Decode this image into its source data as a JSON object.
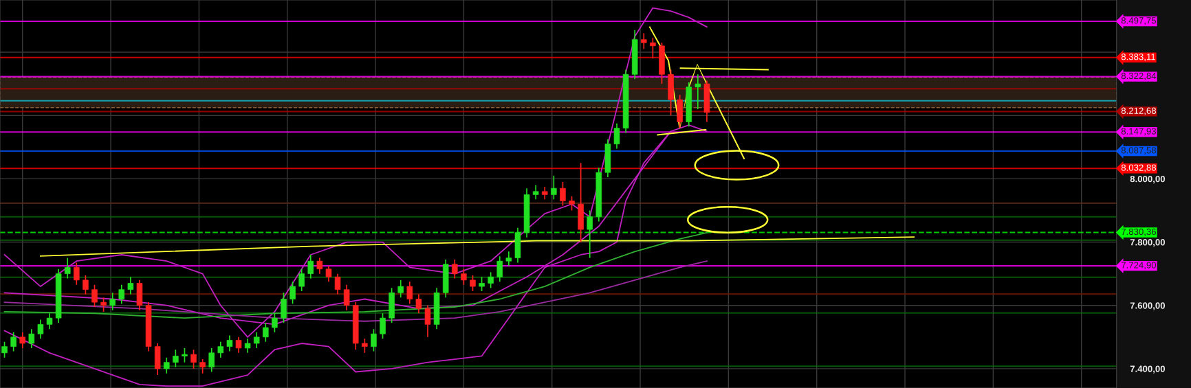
{
  "chart_data": {
    "type": "candlestick",
    "categories": [
      null,
      null,
      null,
      null,
      null,
      null,
      null,
      null,
      null,
      null,
      null,
      null,
      null,
      null,
      null,
      null,
      null,
      null,
      null,
      null,
      null,
      null,
      null,
      null,
      null,
      null,
      null,
      null,
      null,
      null,
      null,
      null,
      null,
      null,
      null,
      null,
      null,
      null,
      null,
      null,
      null,
      null,
      null,
      null,
      null,
      null,
      null,
      null,
      null,
      null,
      null,
      null,
      null,
      null,
      null,
      null,
      null,
      null,
      null,
      null,
      null,
      null,
      null,
      null,
      null,
      null,
      null,
      null,
      null,
      null,
      null,
      null,
      null,
      null,
      null,
      null,
      null,
      null,
      null,
      null,
      null,
      null,
      null,
      null,
      null,
      null,
      null,
      null,
      null,
      null,
      null,
      null,
      null,
      null,
      null,
      null,
      null,
      null,
      null,
      null,
      null,
      null,
      null,
      null,
      null,
      null,
      null,
      null,
      null,
      null,
      null,
      null,
      null,
      null,
      null,
      null,
      null,
      null,
      null,
      null,
      null,
      null,
      null,
      null
    ],
    "ohlc": [
      [
        7450,
        7485,
        7435,
        7470
      ],
      [
        7470,
        7515,
        7455,
        7500
      ],
      [
        7500,
        7515,
        7465,
        7480
      ],
      [
        7480,
        7525,
        7465,
        7510
      ],
      [
        7510,
        7555,
        7495,
        7540
      ],
      [
        7540,
        7575,
        7525,
        7560
      ],
      [
        7560,
        7715,
        7545,
        7700
      ],
      [
        7700,
        7750,
        7685,
        7720
      ],
      [
        7720,
        7735,
        7665,
        7680
      ],
      [
        7680,
        7695,
        7635,
        7650
      ],
      [
        7650,
        7665,
        7595,
        7610
      ],
      [
        7610,
        7625,
        7580,
        7600
      ],
      [
        7600,
        7640,
        7585,
        7620
      ],
      [
        7620,
        7665,
        7605,
        7650
      ],
      [
        7650,
        7690,
        7635,
        7670
      ],
      [
        7670,
        7680,
        7585,
        7600
      ],
      [
        7600,
        7610,
        7455,
        7470
      ],
      [
        7470,
        7480,
        7380,
        7400
      ],
      [
        7400,
        7435,
        7385,
        7420
      ],
      [
        7420,
        7460,
        7405,
        7440
      ],
      [
        7440,
        7465,
        7420,
        7445
      ],
      [
        7445,
        7460,
        7400,
        7420
      ],
      [
        7420,
        7430,
        7385,
        7405
      ],
      [
        7405,
        7465,
        7390,
        7450
      ],
      [
        7450,
        7485,
        7435,
        7470
      ],
      [
        7470,
        7505,
        7455,
        7490
      ],
      [
        7490,
        7500,
        7450,
        7465
      ],
      [
        7465,
        7495,
        7450,
        7480
      ],
      [
        7480,
        7515,
        7465,
        7500
      ],
      [
        7500,
        7545,
        7485,
        7530
      ],
      [
        7530,
        7575,
        7515,
        7560
      ],
      [
        7560,
        7640,
        7545,
        7620
      ],
      [
        7620,
        7675,
        7605,
        7660
      ],
      [
        7660,
        7715,
        7645,
        7700
      ],
      [
        7700,
        7760,
        7685,
        7740
      ],
      [
        7740,
        7750,
        7700,
        7715
      ],
      [
        7715,
        7725,
        7675,
        7690
      ],
      [
        7690,
        7700,
        7635,
        7650
      ],
      [
        7650,
        7665,
        7585,
        7600
      ],
      [
        7600,
        7610,
        7460,
        7480
      ],
      [
        7480,
        7495,
        7450,
        7470
      ],
      [
        7470,
        7525,
        7455,
        7510
      ],
      [
        7510,
        7575,
        7495,
        7560
      ],
      [
        7560,
        7655,
        7545,
        7640
      ],
      [
        7640,
        7680,
        7625,
        7660
      ],
      [
        7660,
        7675,
        7605,
        7620
      ],
      [
        7620,
        7635,
        7575,
        7590
      ],
      [
        7590,
        7600,
        7500,
        7540
      ],
      [
        7540,
        7655,
        7525,
        7640
      ],
      [
        7640,
        7745,
        7625,
        7730
      ],
      [
        7730,
        7745,
        7685,
        7700
      ],
      [
        7700,
        7715,
        7665,
        7680
      ],
      [
        7680,
        7695,
        7645,
        7660
      ],
      [
        7660,
        7690,
        7645,
        7670
      ],
      [
        7670,
        7705,
        7655,
        7690
      ],
      [
        7690,
        7755,
        7675,
        7740
      ],
      [
        7740,
        7770,
        7725,
        7750
      ],
      [
        7750,
        7845,
        7735,
        7830
      ],
      [
        7830,
        7970,
        7815,
        7950
      ],
      [
        7950,
        7980,
        7935,
        7960
      ],
      [
        7960,
        7975,
        7935,
        7950
      ],
      [
        7950,
        8010,
        7935,
        7970
      ],
      [
        7970,
        7990,
        7915,
        7930
      ],
      [
        7930,
        7945,
        7900,
        7920
      ],
      [
        7920,
        8050,
        7800,
        7840
      ],
      [
        7840,
        7900,
        7750,
        7880
      ],
      [
        7880,
        8035,
        7865,
        8020
      ],
      [
        8020,
        8125,
        8005,
        8110
      ],
      [
        8110,
        8175,
        8095,
        8160
      ],
      [
        8160,
        8345,
        8145,
        8330
      ],
      [
        8330,
        8470,
        8315,
        8440
      ],
      [
        8440,
        8460,
        8410,
        8430
      ],
      [
        8430,
        8445,
        8380,
        8420
      ],
      [
        8420,
        8430,
        8300,
        8330
      ],
      [
        8330,
        8345,
        8200,
        8250
      ],
      [
        8250,
        8265,
        8160,
        8180
      ],
      [
        8180,
        8305,
        8165,
        8290
      ],
      [
        8290,
        8330,
        8220,
        8300
      ],
      [
        8300,
        8310,
        8180,
        8210
      ],
      null,
      null,
      null,
      null,
      null,
      null,
      null,
      null,
      null,
      null,
      null,
      null,
      null,
      null,
      null,
      null,
      null,
      null,
      null,
      null,
      null,
      null,
      null,
      null,
      null,
      null,
      null,
      null,
      null,
      null,
      null,
      null,
      null,
      null,
      null,
      null,
      null,
      null,
      null,
      null,
      null,
      null,
      null,
      null,
      null
    ],
    "colors": [
      "#22e022",
      "#22e022",
      "#ff2020",
      "#22e022",
      "#22e022",
      "#22e022",
      "#22e022",
      "#22e022",
      "#ff2020",
      "#ff2020",
      "#ff2020",
      "#ff2020",
      "#22e022",
      "#22e022",
      "#22e022",
      "#ff2020",
      "#ff2020",
      "#ff2020",
      "#22e022",
      "#22e022",
      "#22e022",
      "#ff2020",
      "#ff2020",
      "#22e022",
      "#22e022",
      "#22e022",
      "#ff2020",
      "#22e022",
      "#22e022",
      "#22e022",
      "#22e022",
      "#22e022",
      "#22e022",
      "#22e022",
      "#22e022",
      "#ff2020",
      "#ff2020",
      "#ff2020",
      "#ff2020",
      "#ff2020",
      "#ff2020",
      "#22e022",
      "#22e022",
      "#22e022",
      "#22e022",
      "#ff2020",
      "#ff2020",
      "#ff2020",
      "#22e022",
      "#22e022",
      "#ff2020",
      "#ff2020",
      "#ff2020",
      "#22e022",
      "#22e022",
      "#22e022",
      "#22e022",
      "#22e022",
      "#22e022",
      "#22e022",
      "#ff2020",
      "#22e022",
      "#ff2020",
      "#ff2020",
      "#ff2020",
      "#22e022",
      "#22e022",
      "#22e022",
      "#22e022",
      "#22e022",
      "#22e022",
      "#ff2020",
      "#ff2020",
      "#ff2020",
      "#ff2020",
      "#ff2020",
      "#22e022",
      "#22e022",
      "#ff2020",
      null,
      null,
      null,
      null,
      null,
      null,
      null,
      null,
      null,
      null,
      null,
      null,
      null,
      null,
      null,
      null,
      null,
      null,
      null,
      null,
      null,
      null,
      null,
      null,
      null,
      null,
      null,
      null,
      null,
      null,
      null,
      null,
      null,
      null,
      null,
      null,
      null,
      null,
      null,
      null,
      null,
      null,
      null,
      null,
      null
    ],
    "series": [
      {
        "type": "line",
        "color": "#c020c0",
        "values": [
          7760,
          null,
          null,
          null,
          7660,
          null,
          null,
          null,
          7740,
          null,
          null,
          null,
          null,
          7760,
          null,
          null,
          null,
          null,
          7740,
          null,
          null,
          null,
          7700,
          null,
          7600,
          null,
          null,
          7500,
          null,
          null,
          7580,
          null,
          null,
          null,
          7760,
          null,
          null,
          null,
          7800,
          null,
          null,
          null,
          7800,
          null,
          null,
          7720,
          null,
          null,
          null,
          null,
          7700,
          null,
          null,
          null,
          7740,
          null,
          null,
          null,
          null,
          null,
          7890,
          null,
          null,
          7920,
          null,
          7880,
          null,
          null,
          null,
          null,
          8450,
          null,
          8540,
          null,
          8530,
          null,
          8510,
          null,
          8480,
          null,
          null,
          null,
          null,
          null,
          null,
          null,
          null,
          null,
          null,
          null,
          null,
          null,
          null,
          null,
          null,
          null,
          null,
          null,
          null,
          null,
          null,
          null,
          null,
          null,
          null,
          null,
          null,
          null,
          null,
          null,
          null,
          null,
          null,
          null,
          null,
          null,
          null,
          null,
          null,
          null,
          null,
          null,
          null,
          null
        ]
      },
      {
        "type": "line",
        "color": "#c020c0",
        "values": [
          7640,
          null,
          null,
          null,
          null,
          null,
          null,
          null,
          null,
          null,
          null,
          null,
          7620,
          null,
          null,
          null,
          null,
          null,
          7600,
          null,
          null,
          null,
          null,
          null,
          7560,
          null,
          null,
          null,
          null,
          null,
          7540,
          null,
          null,
          null,
          null,
          null,
          7600,
          null,
          null,
          null,
          7620,
          null,
          null,
          null,
          null,
          null,
          7590,
          null,
          null,
          null,
          null,
          null,
          7600,
          null,
          null,
          null,
          null,
          null,
          7690,
          null,
          null,
          null,
          7760,
          null,
          null,
          null,
          7850,
          null,
          null,
          null,
          8000,
          null,
          null,
          null,
          8150,
          null,
          null,
          null,
          null,
          null,
          null,
          null,
          null,
          null,
          null,
          null,
          null,
          null,
          null,
          null,
          null,
          null,
          null,
          null,
          null,
          null,
          null,
          null,
          null,
          null,
          null,
          null,
          null,
          null,
          null,
          null,
          null,
          null,
          null,
          null,
          null,
          null,
          null,
          null,
          null,
          null,
          null,
          null,
          null,
          null,
          null,
          null,
          null,
          null
        ]
      },
      {
        "type": "line",
        "color": "#c020c0",
        "values": [
          7520,
          null,
          null,
          null,
          null,
          7450,
          null,
          null,
          null,
          null,
          7400,
          null,
          null,
          null,
          null,
          7350,
          null,
          null,
          7345,
          null,
          null,
          null,
          7345,
          null,
          null,
          null,
          null,
          7380,
          null,
          null,
          7460,
          null,
          null,
          7480,
          null,
          null,
          7470,
          null,
          null,
          7390,
          null,
          null,
          null,
          7400,
          null,
          null,
          null,
          7420,
          null,
          null,
          7430,
          null,
          null,
          7440,
          null,
          null,
          7560,
          null,
          null,
          null,
          7720,
          null,
          null,
          null,
          7760,
          null,
          7770,
          null,
          7800,
          7930,
          null,
          8050,
          null,
          null,
          8150,
          null,
          8170,
          null,
          8150,
          null,
          null,
          null,
          null,
          null,
          null,
          null,
          null,
          null,
          null,
          null,
          null,
          null,
          null,
          null,
          null,
          null,
          null,
          null,
          null,
          null,
          null,
          null,
          null,
          null,
          null,
          null,
          null,
          null,
          null,
          null,
          null,
          null,
          null,
          null,
          null,
          null,
          null,
          null,
          null,
          null,
          null,
          null,
          null,
          null
        ]
      },
      {
        "type": "line",
        "color": "#30b030",
        "values": [
          7580,
          null,
          null,
          null,
          null,
          null,
          null,
          null,
          null,
          null,
          7575,
          null,
          null,
          null,
          null,
          null,
          null,
          null,
          null,
          null,
          7560,
          null,
          null,
          null,
          null,
          null,
          null,
          null,
          null,
          null,
          7575,
          null,
          null,
          null,
          null,
          null,
          null,
          null,
          null,
          null,
          7580,
          null,
          null,
          null,
          null,
          null,
          null,
          null,
          null,
          null,
          7595,
          null,
          null,
          null,
          null,
          7620,
          null,
          null,
          null,
          null,
          7660,
          null,
          null,
          null,
          null,
          7720,
          null,
          null,
          null,
          null,
          7770,
          null,
          null,
          null,
          null,
          7810,
          null,
          null,
          7830,
          null,
          null,
          null,
          null,
          null,
          null,
          null,
          null,
          null,
          null,
          null,
          null,
          null,
          null,
          null,
          null,
          null,
          null,
          null,
          null,
          null,
          null,
          null,
          null,
          null,
          null,
          null,
          null,
          null,
          null,
          null,
          null,
          null,
          null,
          null,
          null,
          null,
          null,
          null,
          null,
          null,
          null,
          null,
          null,
          null
        ]
      },
      {
        "type": "line",
        "color": "#9a2aa0",
        "values": [
          7610,
          null,
          null,
          null,
          null,
          null,
          null,
          null,
          null,
          null,
          null,
          null,
          null,
          null,
          null,
          7590,
          null,
          null,
          null,
          null,
          null,
          null,
          null,
          null,
          null,
          null,
          null,
          null,
          null,
          null,
          7560,
          null,
          null,
          null,
          null,
          null,
          null,
          null,
          null,
          null,
          7550,
          null,
          null,
          null,
          null,
          null,
          null,
          null,
          null,
          null,
          7560,
          null,
          null,
          null,
          null,
          7580,
          null,
          null,
          null,
          null,
          7610,
          null,
          null,
          null,
          null,
          7640,
          null,
          null,
          null,
          null,
          7680,
          null,
          null,
          null,
          null,
          7720,
          null,
          null,
          7740,
          null,
          null,
          null,
          null,
          null,
          null,
          null,
          null,
          null,
          null,
          null,
          null,
          null,
          null,
          null,
          null,
          null,
          null,
          null,
          null,
          null,
          null,
          null,
          null,
          null,
          null,
          null,
          null,
          null,
          null,
          null,
          null,
          null,
          null,
          null,
          null,
          null,
          null,
          null,
          null,
          null,
          null,
          null,
          null,
          null
        ]
      },
      {
        "type": "line",
        "color": "#ffff33",
        "values": [
          null,
          null,
          null,
          null,
          7756,
          null,
          null,
          null,
          null,
          null,
          null,
          null,
          null,
          null,
          null,
          null,
          null,
          null,
          null,
          null,
          null,
          null,
          null,
          null,
          null,
          null,
          null,
          null,
          null,
          null,
          null,
          null,
          null,
          null,
          7787,
          null,
          null,
          null,
          null,
          null,
          null,
          null,
          null,
          null,
          null,
          null,
          null,
          null,
          null,
          null,
          null,
          null,
          null,
          null,
          null,
          null,
          null,
          null,
          null,
          7804,
          null,
          null,
          null,
          null,
          null,
          null,
          null,
          null,
          null,
          null,
          null,
          null,
          null,
          null,
          null,
          null,
          7804,
          null,
          null,
          null,
          null,
          null,
          null,
          null,
          null,
          null,
          null,
          null,
          null,
          null,
          null,
          null,
          null,
          null,
          null,
          null,
          null,
          null,
          null,
          null,
          null,
          7816,
          null,
          null,
          null,
          null,
          null,
          null,
          null,
          null,
          null,
          null,
          null,
          null,
          null,
          null,
          null,
          null,
          null,
          null,
          null,
          null,
          null,
          null
        ]
      }
    ],
    "ylim": [
      7339,
      8565
    ],
    "yticks": [
      {
        "value": 7400,
        "label": "7.400,00"
      },
      {
        "value": 7600,
        "label": "7.600,00"
      },
      {
        "value": 7800,
        "label": "7.800,00"
      },
      {
        "value": 8000,
        "label": "8.000,00"
      },
      {
        "value": 8200,
        "label": null
      },
      {
        "value": 8400,
        "label": null
      }
    ],
    "tick_labels": "y",
    "grid": true,
    "line_style": "solid",
    "bands": [
      {
        "axis": "y",
        "from": 8225,
        "to": 8321,
        "color": "#2a1e14"
      }
    ],
    "ref_lines": [
      {
        "axis": "y",
        "value": 8497.75,
        "label": "8.497,75",
        "color": "#ff00ff"
      },
      {
        "axis": "y",
        "value": 8383.11,
        "label": "8.383,11",
        "color": "#ff0000"
      },
      {
        "axis": "y",
        "value": 8322.84,
        "label": "8.322,84",
        "color": "#ff00ff"
      },
      {
        "axis": "y",
        "value": 8284.6,
        "color": "#b00000"
      },
      {
        "axis": "y",
        "value": 8246.5,
        "color": "#10c0d0"
      },
      {
        "axis": "y",
        "value": 8212.68,
        "label": "8.212,68",
        "color": "#b00000"
      },
      {
        "axis": "y",
        "value": 8147.93,
        "label": "8.147,93",
        "color": "#ff00ff"
      },
      {
        "axis": "y",
        "value": 8087.58,
        "label": "8.087,58",
        "color": "#0055ff"
      },
      {
        "axis": "y",
        "value": 8032.88,
        "label": "8.032,88",
        "color": "#ff0000"
      },
      {
        "axis": "y",
        "value": 7923,
        "color": "#5a2a1a"
      },
      {
        "axis": "y",
        "value": 7880,
        "color": "#0a6a0a"
      },
      {
        "axis": "y",
        "value": 7830.36,
        "label": "7.830,36",
        "color": "#00ff00",
        "line_style": "dashed"
      },
      {
        "axis": "y",
        "value": 7806,
        "color": "#0a6a0a"
      },
      {
        "axis": "y",
        "value": 7724.9,
        "label": "7.724,90",
        "color": "#ff00ff"
      },
      {
        "axis": "y",
        "value": 7689,
        "color": "#0a6a0a"
      },
      {
        "axis": "y",
        "value": 7636,
        "color": "#6a1a00"
      },
      {
        "axis": "y",
        "value": 7576,
        "color": "#0a6a0a"
      },
      {
        "axis": "y",
        "value": 7408,
        "color": "#0a6a0a"
      }
    ]
  }
}
